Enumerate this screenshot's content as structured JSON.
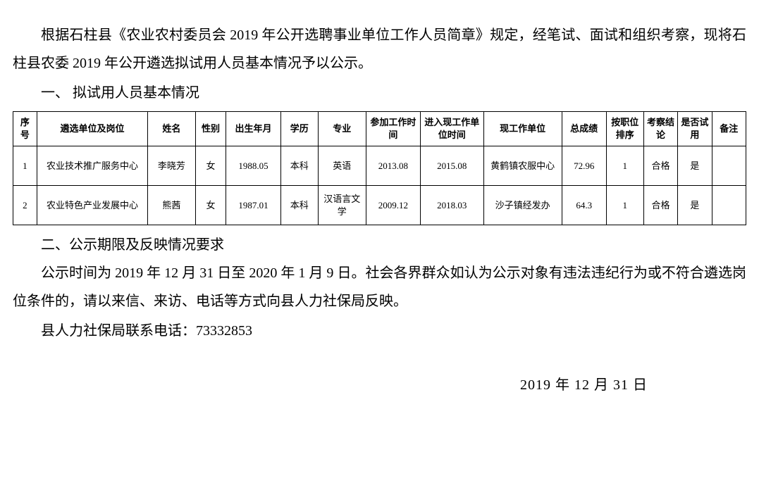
{
  "paragraphs": {
    "intro": "根据石柱县《农业农村委员会 2019 年公开选聘事业单位工作人员简章》规定，经笔试、面试和组织考察，现将石柱县农委 2019 年公开遴选拟试用人员基本情况予以公示。",
    "heading1": "一、 拟试用人员基本情况",
    "heading2": "二、公示期限及反映情况要求",
    "body2a": "公示时间为 2019 年 12 月 31 日至 2020 年 1 月 9 日。社会各界群众如认为公示对象有违法违纪行为或不符合遴选岗位条件的，请以来信、来访、电话等方式向县人力社保局反映。",
    "body2b": "县人力社保局联系电话：73332853",
    "date": "2019 年 12 月 31 日"
  },
  "table": {
    "headers": {
      "seq": "序号",
      "unit": "遴选单位及岗位",
      "name": "姓名",
      "gender": "性别",
      "birth": "出生年月",
      "edu": "学历",
      "major": "专业",
      "worktime": "参加工作时间",
      "currenttime": "进入现工作单位时间",
      "currentunit": "现工作单位",
      "score": "总成绩",
      "rank": "按职位排序",
      "exam": "考察结论",
      "trial": "是否试用",
      "note": "备注"
    },
    "rows": [
      {
        "seq": "1",
        "unit": "农业技术推广服务中心",
        "name": "李晓芳",
        "gender": "女",
        "birth": "1988.05",
        "edu": "本科",
        "major": "英语",
        "worktime": "2013.08",
        "currenttime": "2015.08",
        "currentunit": "黄鹤镇农服中心",
        "score": "72.96",
        "rank": "1",
        "exam": "合格",
        "trial": "是",
        "note": ""
      },
      {
        "seq": "2",
        "unit": "农业特色产业发展中心",
        "name": "熊茜",
        "gender": "女",
        "birth": "1987.01",
        "edu": "本科",
        "major": "汉语言文学",
        "worktime": "2009.12",
        "currenttime": "2018.03",
        "currentunit": "沙子镇经发办",
        "score": "64.3",
        "rank": "1",
        "exam": "合格",
        "trial": "是",
        "note": ""
      }
    ]
  },
  "styles": {
    "body_font_size": 20,
    "table_font_size": 13,
    "text_color": "#000000",
    "background_color": "#ffffff",
    "border_color": "#000000"
  }
}
